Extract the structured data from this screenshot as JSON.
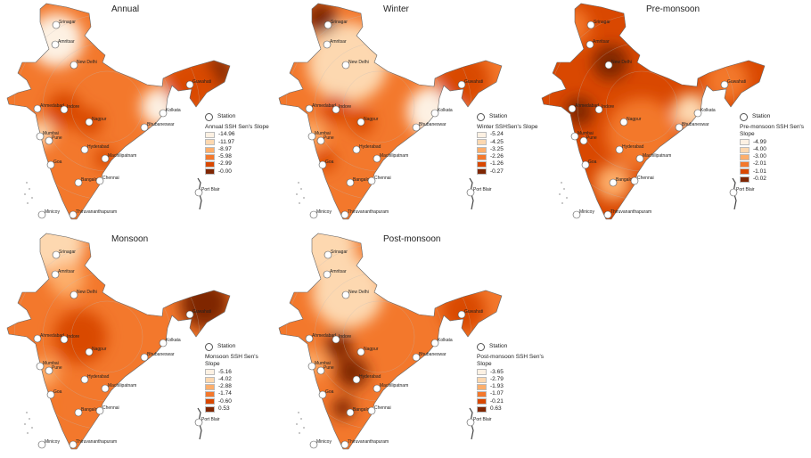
{
  "legend_colors": [
    "#fdf1e3",
    "#fdd8b0",
    "#fdae6b",
    "#f3782c",
    "#d94801",
    "#7f2704"
  ],
  "station_label": "Station",
  "stations": [
    "Srinagar",
    "Amritsar",
    "New Delhi",
    "Guwahati",
    "Ahmedabad",
    "Indore",
    "Nagpur",
    "Kolkata",
    "Bhubaneswar",
    "Mumbai",
    "Pune",
    "Hyderabad",
    "Machilipatnam",
    "Goa",
    "Bangalore",
    "Chennai",
    "Port Blair",
    "Minicoy",
    "Thiruvananthapuram"
  ],
  "panels": [
    {
      "title": "Annual",
      "legend_title": "Annual SSH Sen's Slope",
      "breaks": [
        "-14.96",
        "-11.97",
        "-8.97",
        "-5.98",
        "-2.99",
        "-0.00"
      ]
    },
    {
      "title": "Winter",
      "legend_title": "Winter SSHSen's Slope",
      "breaks": [
        "-5.24",
        "-4.25",
        "-3.25",
        "-2.26",
        "-1.26",
        "-0.27"
      ]
    },
    {
      "title": "Pre-monsoon",
      "legend_title": "Pre-monsoon SSH Sen's Slope",
      "breaks": [
        "-4.99",
        "-4.00",
        "-3.00",
        "-2.01",
        "-1.01",
        "-0.02"
      ]
    },
    {
      "title": "Monsoon",
      "legend_title": "Monsoon SSH Sen's Slope",
      "breaks": [
        "-5.16",
        "-4.02",
        "-2.88",
        "-1.74",
        "-0.60",
        "0.53"
      ]
    },
    {
      "title": "Post-monsoon",
      "legend_title": "Post-monsoon SSH Sen's Slope",
      "breaks": [
        "-3.65",
        "-2.79",
        "-1.93",
        "-1.07",
        "-0.21",
        "0.63"
      ]
    }
  ]
}
